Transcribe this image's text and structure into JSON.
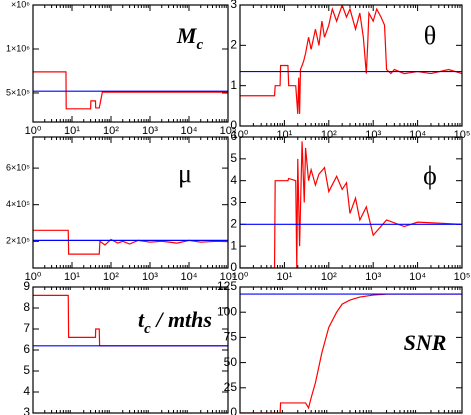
{
  "chart_data": [
    {
      "type": "line",
      "annotation": [
        {
          "text": "M"
        },
        {
          "text": "c",
          "sub": true
        }
      ],
      "log_x": true,
      "xlim": [
        1,
        100000
      ],
      "xticks": [
        {
          "value": 1,
          "label": "10⁰"
        },
        {
          "value": 10,
          "label": "10¹"
        },
        {
          "value": 100,
          "label": "10²"
        },
        {
          "value": 1000,
          "label": "10³"
        },
        {
          "value": 10000,
          "label": "10⁴"
        },
        {
          "value": 100000,
          "label": "10⁵"
        }
      ],
      "ylim": [
        170000,
        1500000
      ],
      "yticks": [
        {
          "value": 500000,
          "label": "5×10⁵"
        },
        {
          "value": 1000000,
          "label": "1×10⁶"
        },
        {
          "value": 1500000,
          "label": "×10⁶"
        }
      ],
      "series": [
        {
          "color": "red",
          "x": [
            1,
            7,
            7.1,
            30,
            30.5,
            40,
            40.5,
            50,
            60,
            100,
            1000,
            100000
          ],
          "values": [
            740000,
            740000,
            320000,
            320000,
            410000,
            410000,
            330000,
            330000,
            510000,
            510000,
            510000,
            510000
          ]
        },
        {
          "color": "blue",
          "x": [
            1,
            100000
          ],
          "values": [
            520000,
            520000
          ]
        }
      ]
    },
    {
      "type": "line",
      "annotation": [
        {
          "text": "θ"
        }
      ],
      "log_x": true,
      "xlim": [
        1,
        100000
      ],
      "xticks": [
        {
          "value": 1,
          "label": "10⁰"
        },
        {
          "value": 10,
          "label": "10¹"
        },
        {
          "value": 100,
          "label": "10²"
        },
        {
          "value": 1000,
          "label": "10³"
        },
        {
          "value": 10000,
          "label": "10⁴"
        },
        {
          "value": 100000,
          "label": "10⁵"
        }
      ],
      "ylim": [
        0,
        3
      ],
      "yticks": [
        0,
        1,
        2,
        3
      ],
      "series": [
        {
          "color": "red",
          "x": [
            1,
            6,
            6.2,
            8,
            8.2,
            12,
            12.5,
            18,
            20,
            21,
            22,
            23,
            25,
            27,
            30,
            35,
            40,
            50,
            60,
            70,
            80,
            100,
            120,
            150,
            200,
            250,
            300,
            400,
            500,
            600,
            700,
            750,
            800,
            1000,
            1200,
            1500,
            1800,
            2000,
            2500,
            3000,
            5000,
            10000,
            20000,
            50000,
            100000
          ],
          "values": [
            0.75,
            0.75,
            1.0,
            1.0,
            1.5,
            1.5,
            1.0,
            1.0,
            0.3,
            1.2,
            0.3,
            1.4,
            1.5,
            1.6,
            1.8,
            2.2,
            1.9,
            2.4,
            2.0,
            2.6,
            2.2,
            2.5,
            2.9,
            2.6,
            3.0,
            2.7,
            2.9,
            2.4,
            2.8,
            2.2,
            1.3,
            2.0,
            2.8,
            2.6,
            2.9,
            2.7,
            2.5,
            1.4,
            1.3,
            1.4,
            1.3,
            1.35,
            1.3,
            1.4,
            1.3
          ]
        },
        {
          "color": "blue",
          "x": [
            1,
            100000
          ],
          "values": [
            1.35,
            1.35
          ]
        }
      ]
    },
    {
      "type": "line",
      "annotation": [
        {
          "text": "μ"
        }
      ],
      "log_x": true,
      "xlim": [
        1,
        100000
      ],
      "xticks": [
        {
          "value": 1,
          "label": "10⁰"
        },
        {
          "value": 10,
          "label": "10¹"
        },
        {
          "value": 100,
          "label": "10²"
        },
        {
          "value": 1000,
          "label": "10³"
        },
        {
          "value": 10000,
          "label": "10⁴"
        },
        {
          "value": 100000,
          "label": "10⁵"
        }
      ],
      "ylim": [
        54000,
        770000
      ],
      "yticks": [
        {
          "value": 200000,
          "label": "2×10⁵"
        },
        {
          "value": 400000,
          "label": "4×10⁵"
        },
        {
          "value": 600000,
          "label": "6×10⁵"
        }
      ],
      "series": [
        {
          "color": "red",
          "x": [
            1,
            8,
            8.2,
            50,
            52,
            70,
            100,
            150,
            200,
            300,
            500,
            1000,
            2000,
            5000,
            10000,
            20000,
            50000,
            100000
          ],
          "values": [
            260000,
            260000,
            130000,
            130000,
            200000,
            180000,
            210000,
            190000,
            200000,
            185000,
            205000,
            195000,
            200000,
            190000,
            205000,
            195000,
            200000,
            198000
          ]
        },
        {
          "color": "blue",
          "x": [
            1,
            100000
          ],
          "values": [
            205000,
            205000
          ]
        }
      ]
    },
    {
      "type": "line",
      "annotation": [
        {
          "text": "ϕ"
        }
      ],
      "log_x": true,
      "xlim": [
        1,
        100000
      ],
      "xticks": [
        {
          "value": 1,
          "label": "10⁰"
        },
        {
          "value": 10,
          "label": "10¹"
        },
        {
          "value": 100,
          "label": "10²"
        },
        {
          "value": 1000,
          "label": "10³"
        },
        {
          "value": 10000,
          "label": "10⁴"
        },
        {
          "value": 100000,
          "label": "10⁵"
        }
      ],
      "ylim": [
        0,
        6
      ],
      "yticks": [
        0,
        1,
        2,
        3,
        4,
        5,
        6
      ],
      "series": [
        {
          "color": "red",
          "x": [
            1,
            6,
            6.2,
            12,
            12.5,
            18,
            19,
            20,
            22,
            25,
            28,
            30,
            35,
            40,
            50,
            60,
            80,
            100,
            150,
            200,
            250,
            300,
            400,
            500,
            700,
            1000,
            2000,
            5000,
            10000,
            100000
          ],
          "values": [
            0,
            0,
            4,
            4,
            4.1,
            4,
            0,
            5,
            1,
            5.8,
            3,
            5.5,
            4,
            4.5,
            3.8,
            4.3,
            4.6,
            3.5,
            4.2,
            3.6,
            3.9,
            2.5,
            3.2,
            2.2,
            2.8,
            1.5,
            2.2,
            1.9,
            2.1,
            2.0
          ]
        },
        {
          "color": "blue",
          "x": [
            1,
            100000
          ],
          "values": [
            2,
            2
          ]
        }
      ]
    },
    {
      "type": "line",
      "annotation": [
        {
          "text": "t"
        },
        {
          "text": "c",
          "sub": true
        },
        {
          "text": " / mths"
        }
      ],
      "log_x": true,
      "xlim": [
        1,
        100000
      ],
      "ylim": [
        3,
        9
      ],
      "yticks": [
        3,
        4,
        5,
        6,
        7,
        8,
        9
      ],
      "series": [
        {
          "color": "red",
          "x": [
            1,
            8,
            8.2,
            40,
            40.5,
            50,
            51,
            100000
          ],
          "values": [
            8.6,
            8.6,
            6.6,
            6.6,
            7.0,
            7.0,
            6.2,
            6.2
          ]
        },
        {
          "color": "blue",
          "x": [
            1,
            100000
          ],
          "values": [
            6.2,
            6.2
          ]
        }
      ]
    },
    {
      "type": "line",
      "annotation": [
        {
          "text": "SNR"
        }
      ],
      "log_x": true,
      "xlim": [
        1,
        100000
      ],
      "ylim": [
        0,
        125
      ],
      "yticks": [
        0,
        25,
        50,
        75,
        100,
        125
      ],
      "series": [
        {
          "color": "red",
          "x": [
            1,
            8,
            8.2,
            30,
            35,
            40,
            50,
            70,
            100,
            150,
            200,
            300,
            500,
            1000,
            2000,
            100000
          ],
          "values": [
            0,
            0,
            10,
            10,
            5,
            15,
            30,
            60,
            85,
            100,
            108,
            112,
            115,
            117,
            118,
            118
          ]
        },
        {
          "color": "blue",
          "x": [
            1,
            100000
          ],
          "values": [
            118,
            118
          ]
        }
      ]
    }
  ]
}
